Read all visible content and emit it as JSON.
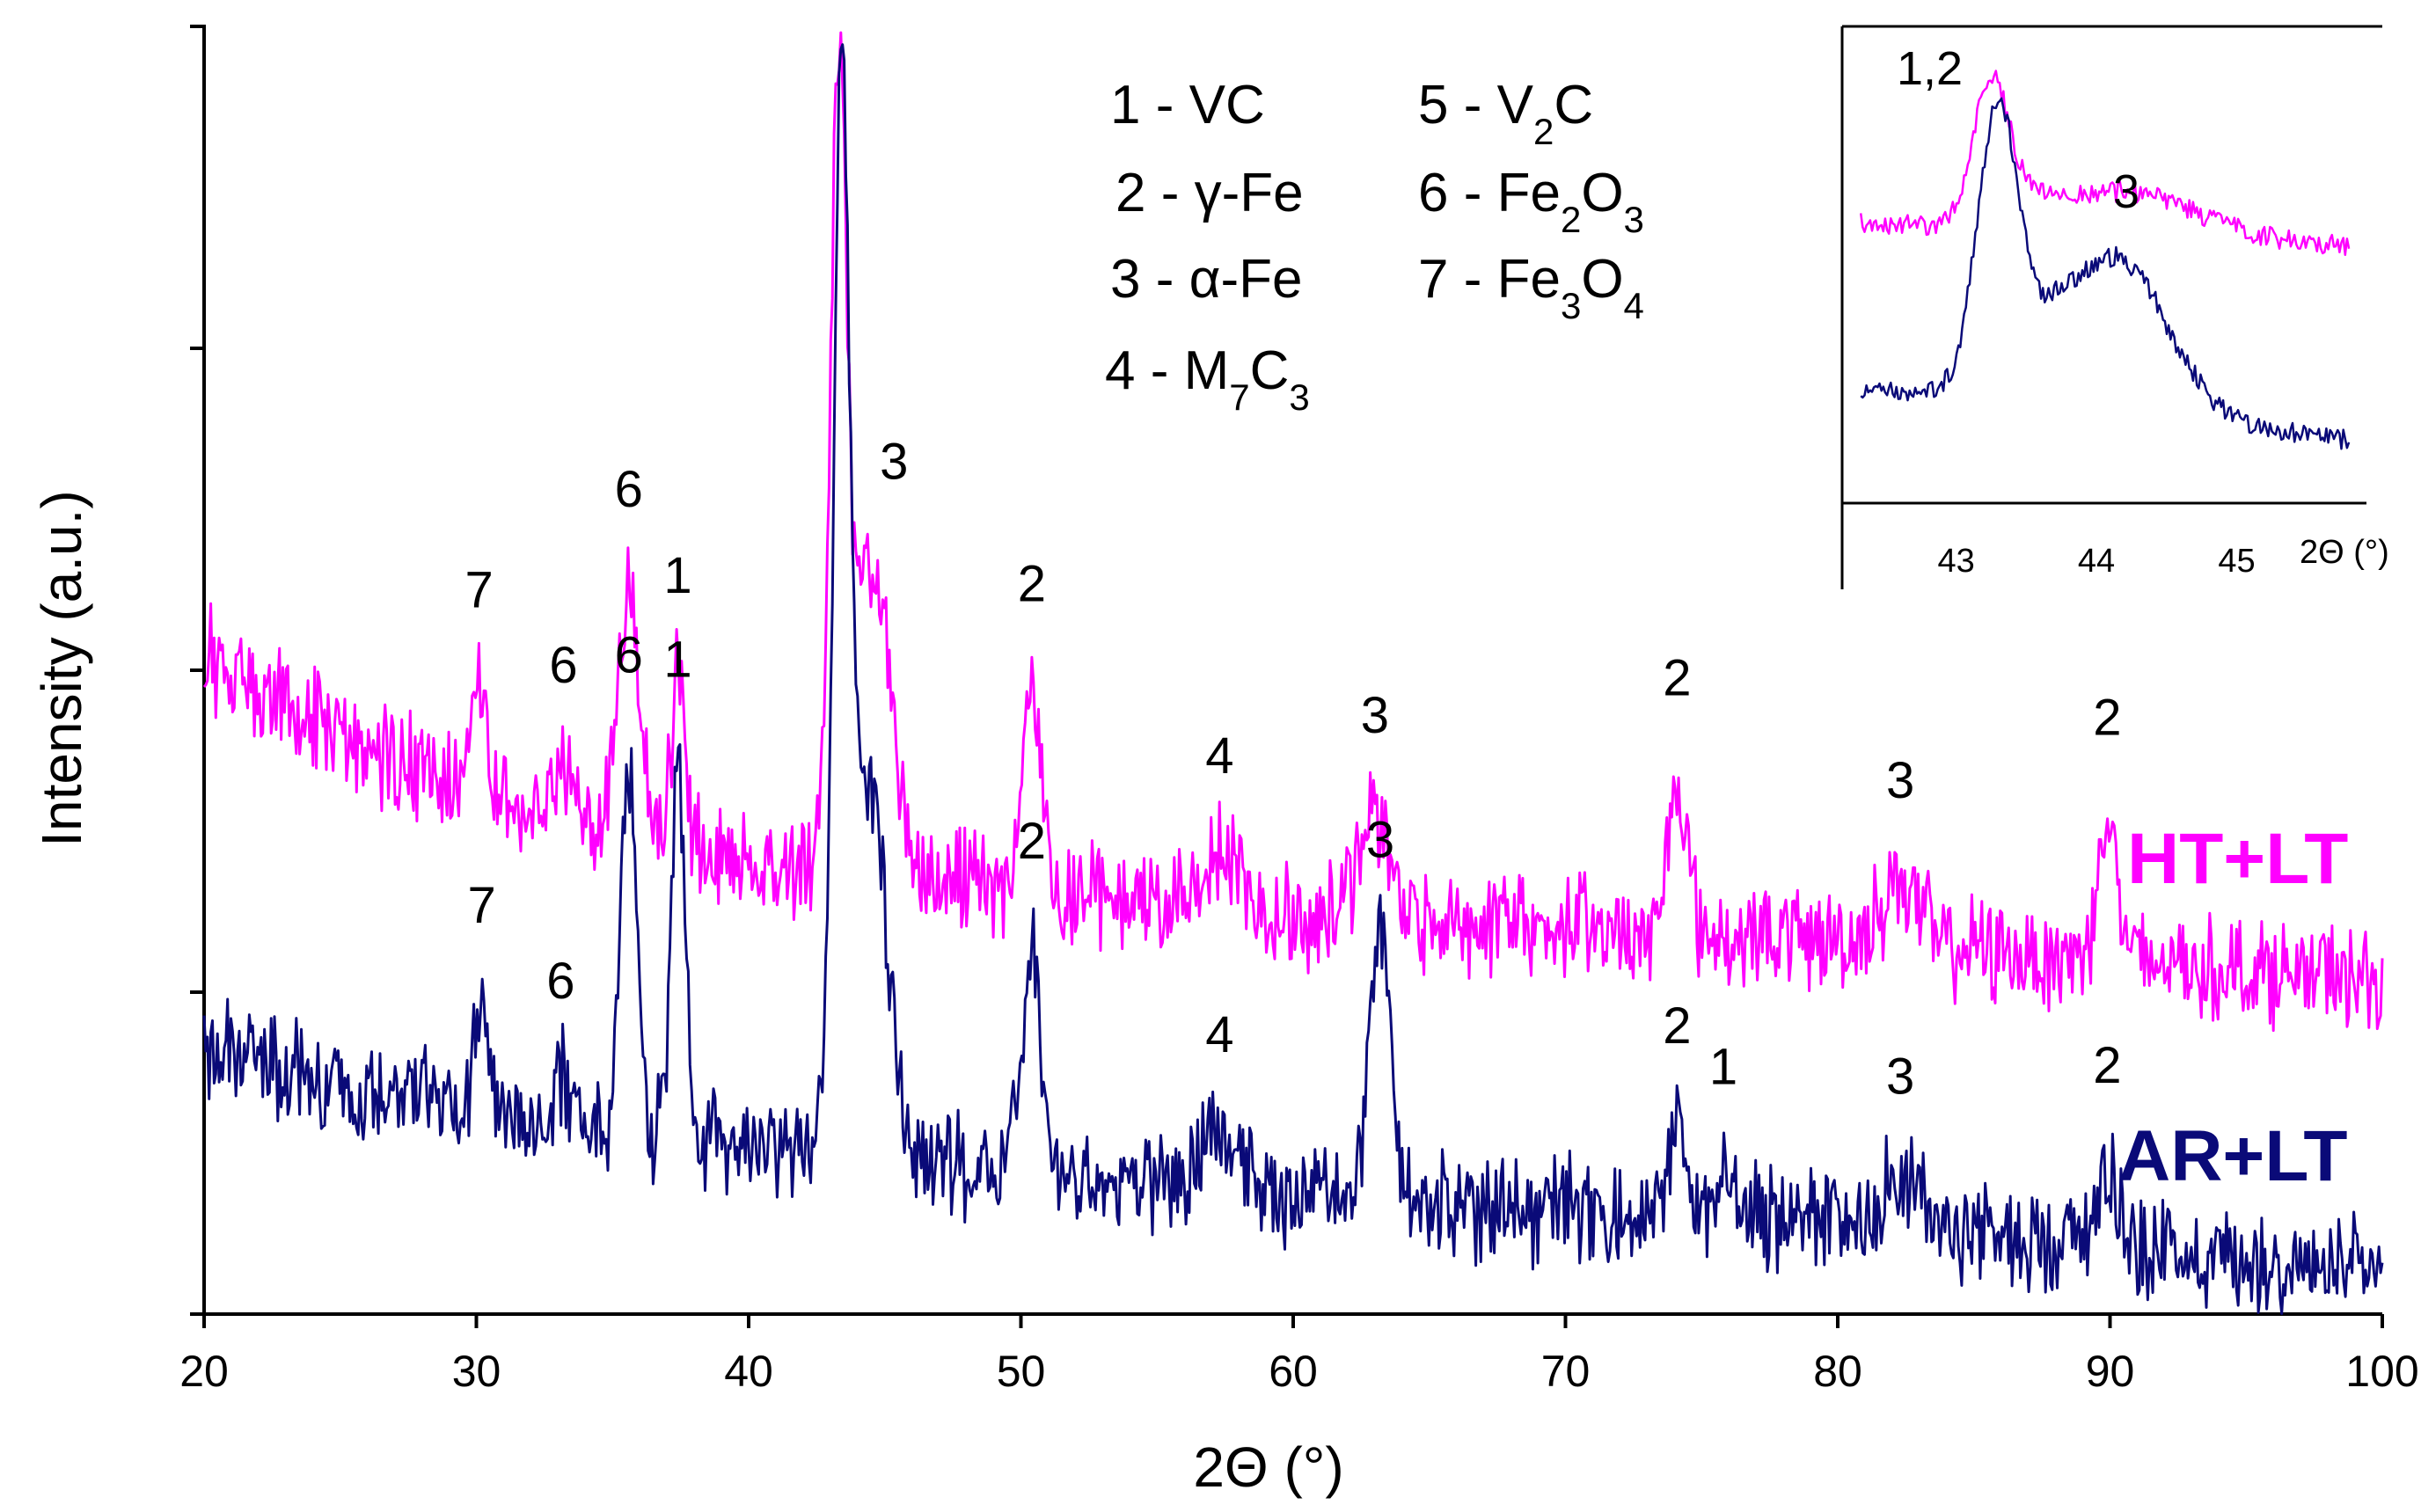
{
  "chart_data": {
    "type": "line",
    "title": "",
    "xlabel": "2Θ (°)",
    "ylabel": "Intensity (a.u.)",
    "xlim": [
      20,
      100
    ],
    "ylim": [
      0,
      100
    ],
    "xticks": [
      "20",
      "30",
      "40",
      "50",
      "60",
      "70",
      "80",
      "90",
      "100"
    ],
    "grid": false,
    "series": [
      {
        "name": "HT+LT",
        "color": "#ff00ff",
        "baseline": [
          [
            20,
            51
          ],
          [
            25,
            44.5
          ],
          [
            30,
            40.5
          ],
          [
            35,
            37.5
          ],
          [
            40,
            35.5
          ],
          [
            50,
            33
          ],
          [
            60,
            31
          ],
          [
            70,
            30
          ],
          [
            80,
            29
          ],
          [
            90,
            27.5
          ],
          [
            100,
            26
          ]
        ],
        "peaks": [
          {
            "x": 30.1,
            "h": 8,
            "w": 0.25,
            "label": "7"
          },
          {
            "x": 33.2,
            "h": 4,
            "w": 0.25,
            "label": "6"
          },
          {
            "x": 35.6,
            "h": 19,
            "w": 0.4,
            "label": "6"
          },
          {
            "x": 37.4,
            "h": 13,
            "w": 0.25,
            "label": "1"
          },
          {
            "x": 43.3,
            "h": 58,
            "w": 0.3,
            "label": "1,2"
          },
          {
            "x": 44.5,
            "h": 24,
            "w": 0.7,
            "label": "3"
          },
          {
            "x": 50.4,
            "h": 16,
            "w": 0.35,
            "label": "2"
          },
          {
            "x": 57.3,
            "h": 4,
            "w": 0.8,
            "label": "4"
          },
          {
            "x": 63.0,
            "h": 8,
            "w": 0.6,
            "label": "3"
          },
          {
            "x": 74.1,
            "h": 12,
            "w": 0.35,
            "label": "2"
          },
          {
            "x": 82.3,
            "h": 5,
            "w": 0.7,
            "label": "3"
          },
          {
            "x": 89.9,
            "h": 11,
            "w": 0.35,
            "label": "2"
          }
        ]
      },
      {
        "name": "AR+LT",
        "color": "#0a0a78",
        "baseline": [
          [
            20,
            20.5
          ],
          [
            25,
            18
          ],
          [
            30,
            16
          ],
          [
            35,
            14.5
          ],
          [
            40,
            13.5
          ],
          [
            50,
            11
          ],
          [
            60,
            9.5
          ],
          [
            70,
            8
          ],
          [
            80,
            7
          ],
          [
            90,
            5.5
          ],
          [
            100,
            3
          ]
        ],
        "peaks": [
          {
            "x": 30.2,
            "h": 8,
            "w": 0.25,
            "label": "7"
          },
          {
            "x": 33.1,
            "h": 3,
            "w": 0.25,
            "label": "6"
          },
          {
            "x": 35.6,
            "h": 29,
            "w": 0.3,
            "label": "6"
          },
          {
            "x": 37.4,
            "h": 29,
            "w": 0.25,
            "label": "1"
          },
          {
            "x": 43.4,
            "h": 76,
            "w": 0.3,
            "label": "1,2"
          },
          {
            "x": 44.4,
            "h": 29,
            "w": 0.65,
            "label": "3"
          },
          {
            "x": 50.4,
            "h": 18,
            "w": 0.35,
            "label": "2"
          },
          {
            "x": 57.3,
            "h": 4,
            "w": 0.7,
            "label": "4"
          },
          {
            "x": 63.2,
            "h": 20,
            "w": 0.4,
            "label": "3"
          },
          {
            "x": 74.1,
            "h": 7,
            "w": 0.35,
            "label": "2"
          },
          {
            "x": 75.8,
            "h": 4,
            "w": 0.3,
            "label": "1"
          },
          {
            "x": 82.3,
            "h": 4,
            "w": 0.7,
            "label": "3"
          },
          {
            "x": 89.9,
            "h": 6,
            "w": 0.4,
            "label": "2"
          }
        ]
      }
    ],
    "legend": {
      "placement": "top-center",
      "entries": [
        {
          "num": "1",
          "main": "VC",
          "subs": []
        },
        {
          "num": "2",
          "main": "γ-Fe",
          "subs": []
        },
        {
          "num": "3",
          "main": "α-Fe",
          "subs": []
        },
        {
          "num": "4",
          "main": "M7C3",
          "subs": []
        },
        {
          "num": "5",
          "main": "V2C",
          "subs": []
        },
        {
          "num": "6",
          "main": "Fe2O3",
          "subs": []
        },
        {
          "num": "7",
          "main": "Fe3O4",
          "subs": []
        }
      ]
    },
    "inset": {
      "placement": "top-right",
      "xlabel": "2Θ (°)",
      "xlim": [
        42.3,
        45.9
      ],
      "xticks": [
        "43",
        "44",
        "45"
      ],
      "ylim": [
        0,
        100
      ],
      "peak_labels": [
        "1,2",
        "3"
      ],
      "series": [
        {
          "name": "HT+LT",
          "color": "#ff00ff",
          "baseline": [
            [
              42.3,
              59
            ],
            [
              44,
              56
            ],
            [
              45.9,
              54
            ]
          ],
          "peaks": [
            {
              "x": 43.25,
              "h": 32,
              "w": 0.13
            },
            {
              "x": 43.6,
              "h": 4,
              "w": 0.15
            },
            {
              "x": 44.2,
              "h": 10,
              "w": 0.5
            }
          ]
        },
        {
          "name": "AR+LT",
          "color": "#0a0a78",
          "baseline": [
            [
              42.3,
              23
            ],
            [
              44,
              19
            ],
            [
              45.9,
              11
            ]
          ],
          "peaks": [
            {
              "x": 43.3,
              "h": 63,
              "w": 0.15
            },
            {
              "x": 43.7,
              "h": 8,
              "w": 0.15
            },
            {
              "x": 44.15,
              "h": 33,
              "w": 0.35
            }
          ]
        }
      ]
    }
  }
}
